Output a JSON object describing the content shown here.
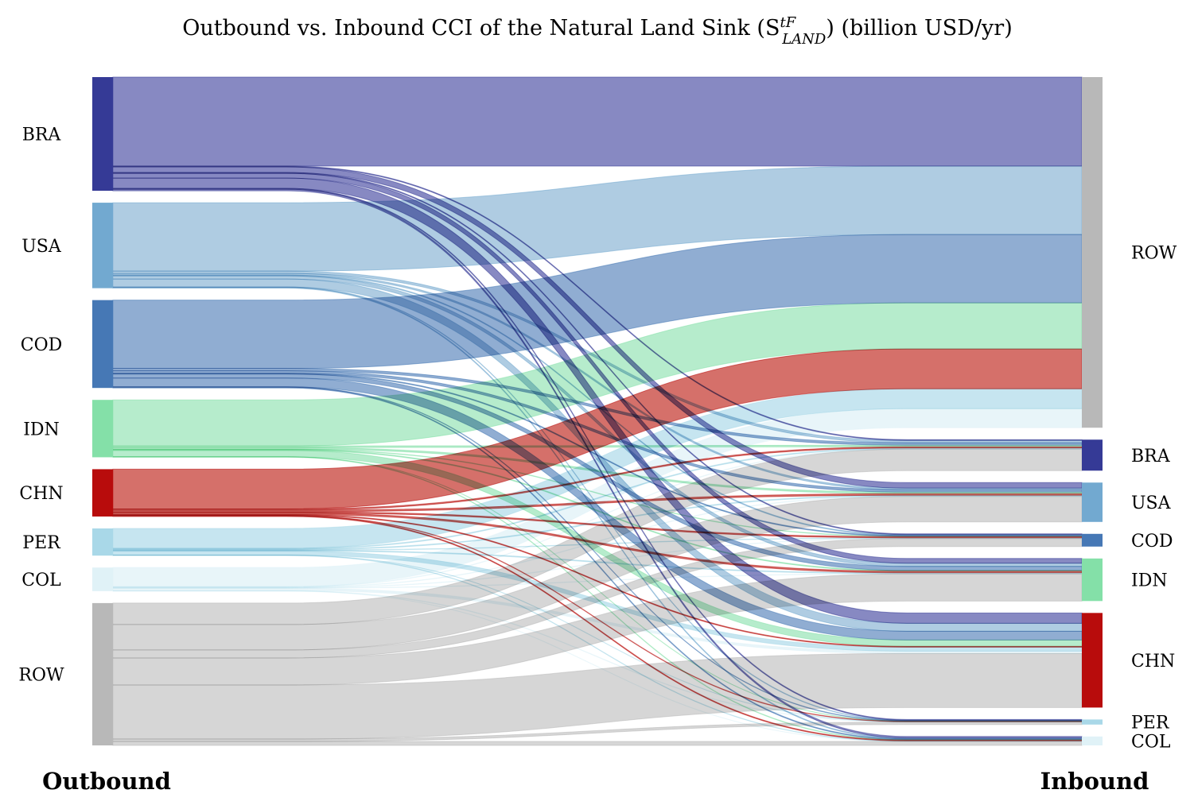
{
  "chart_data": {
    "type": "sankey",
    "title": "Outbound vs. Inbound CCI of the Natural Land Sink (S",
    "title_sup": "tF",
    "title_sub": "LAND",
    "title_suffix": ") (billion USD/yr)",
    "left_label": "Outbound",
    "right_label": "Inbound",
    "unit": "billion USD/yr",
    "nodes": [
      {
        "id": "BRA",
        "color": "#353a96",
        "link_color": "#7a7cbb"
      },
      {
        "id": "USA",
        "color": "#72a9d0",
        "link_color": "#a6c7df"
      },
      {
        "id": "COD",
        "color": "#4678b5",
        "link_color": "#84a4cd"
      },
      {
        "id": "IDN",
        "color": "#84e0a8",
        "link_color": "#aeeac6"
      },
      {
        "id": "CHN",
        "color": "#b80c0c",
        "link_color": "#d0605a"
      },
      {
        "id": "PER",
        "color": "#a9d8e8",
        "link_color": "#c0e2ee"
      },
      {
        "id": "COL",
        "color": "#e0f2f7",
        "link_color": "#e6f4f8"
      },
      {
        "id": "ROW",
        "color": "#b8b8b8",
        "link_color": "#d2d2d2"
      }
    ],
    "source_order": [
      "BRA",
      "USA",
      "COD",
      "IDN",
      "CHN",
      "PER",
      "COL",
      "ROW"
    ],
    "target_order": [
      "ROW",
      "BRA",
      "USA",
      "COD",
      "IDN",
      "CHN",
      "PER",
      "COL"
    ],
    "links": [
      {
        "source": "BRA",
        "target": "ROW",
        "value": 11.2
      },
      {
        "source": "BRA",
        "target": "BRA",
        "value": 0.1
      },
      {
        "source": "BRA",
        "target": "USA",
        "value": 0.7
      },
      {
        "source": "BRA",
        "target": "COD",
        "value": 0.1
      },
      {
        "source": "BRA",
        "target": "IDN",
        "value": 0.6
      },
      {
        "source": "BRA",
        "target": "CHN",
        "value": 1.3
      },
      {
        "source": "BRA",
        "target": "PER",
        "value": 0.1
      },
      {
        "source": "BRA",
        "target": "COL",
        "value": 0.2
      },
      {
        "source": "USA",
        "target": "ROW",
        "value": 8.6
      },
      {
        "source": "USA",
        "target": "BRA",
        "value": 0.3
      },
      {
        "source": "USA",
        "target": "USA",
        "value": 0.2
      },
      {
        "source": "USA",
        "target": "COD",
        "value": 0.1
      },
      {
        "source": "USA",
        "target": "IDN",
        "value": 0.4
      },
      {
        "source": "USA",
        "target": "CHN",
        "value": 1.0
      },
      {
        "source": "USA",
        "target": "PER",
        "value": 0.05
      },
      {
        "source": "USA",
        "target": "COL",
        "value": 0.1
      },
      {
        "source": "COD",
        "target": "ROW",
        "value": 8.6
      },
      {
        "source": "COD",
        "target": "BRA",
        "value": 0.3
      },
      {
        "source": "COD",
        "target": "USA",
        "value": 0.3
      },
      {
        "source": "COD",
        "target": "COD",
        "value": 0.1
      },
      {
        "source": "COD",
        "target": "IDN",
        "value": 0.5
      },
      {
        "source": "COD",
        "target": "CHN",
        "value": 1.1
      },
      {
        "source": "COD",
        "target": "PER",
        "value": 0.05
      },
      {
        "source": "COD",
        "target": "COL",
        "value": 0.1
      },
      {
        "source": "IDN",
        "target": "ROW",
        "value": 5.8
      },
      {
        "source": "IDN",
        "target": "BRA",
        "value": 0.2
      },
      {
        "source": "IDN",
        "target": "USA",
        "value": 0.2
      },
      {
        "source": "IDN",
        "target": "COD",
        "value": 0.05
      },
      {
        "source": "IDN",
        "target": "IDN",
        "value": 0.1
      },
      {
        "source": "IDN",
        "target": "CHN",
        "value": 0.8
      },
      {
        "source": "IDN",
        "target": "PER",
        "value": 0.02
      },
      {
        "source": "IDN",
        "target": "COL",
        "value": 0.05
      },
      {
        "source": "CHN",
        "target": "ROW",
        "value": 5.0
      },
      {
        "source": "CHN",
        "target": "BRA",
        "value": 0.15
      },
      {
        "source": "CHN",
        "target": "USA",
        "value": 0.2
      },
      {
        "source": "CHN",
        "target": "COD",
        "value": 0.15
      },
      {
        "source": "CHN",
        "target": "IDN",
        "value": 0.2
      },
      {
        "source": "CHN",
        "target": "CHN",
        "value": 0.1
      },
      {
        "source": "CHN",
        "target": "PER",
        "value": 0.05
      },
      {
        "source": "CHN",
        "target": "COL",
        "value": 0.1
      },
      {
        "source": "PER",
        "target": "ROW",
        "value": 2.5
      },
      {
        "source": "PER",
        "target": "BRA",
        "value": 0.1
      },
      {
        "source": "PER",
        "target": "USA",
        "value": 0.1
      },
      {
        "source": "PER",
        "target": "COD",
        "value": 0.05
      },
      {
        "source": "PER",
        "target": "IDN",
        "value": 0.1
      },
      {
        "source": "PER",
        "target": "CHN",
        "value": 0.5
      },
      {
        "source": "PER",
        "target": "PER",
        "value": 0.02
      },
      {
        "source": "PER",
        "target": "COL",
        "value": 0.05
      },
      {
        "source": "COL",
        "target": "ROW",
        "value": 2.4
      },
      {
        "source": "COL",
        "target": "BRA",
        "value": 0.05
      },
      {
        "source": "COL",
        "target": "USA",
        "value": 0.05
      },
      {
        "source": "COL",
        "target": "COD",
        "value": 0.05
      },
      {
        "source": "COL",
        "target": "IDN",
        "value": 0.05
      },
      {
        "source": "COL",
        "target": "CHN",
        "value": 0.3
      },
      {
        "source": "COL",
        "target": "PER",
        "value": 0.05
      },
      {
        "source": "COL",
        "target": "COL",
        "value": 0.02
      },
      {
        "source": "ROW",
        "target": "BRA",
        "value": 2.7
      },
      {
        "source": "ROW",
        "target": "USA",
        "value": 3.2
      },
      {
        "source": "ROW",
        "target": "COD",
        "value": 1.0
      },
      {
        "source": "ROW",
        "target": "IDN",
        "value": 3.4
      },
      {
        "source": "ROW",
        "target": "CHN",
        "value": 6.8
      },
      {
        "source": "ROW",
        "target": "PER",
        "value": 0.3
      },
      {
        "source": "ROW",
        "target": "COL",
        "value": 0.5
      }
    ]
  }
}
